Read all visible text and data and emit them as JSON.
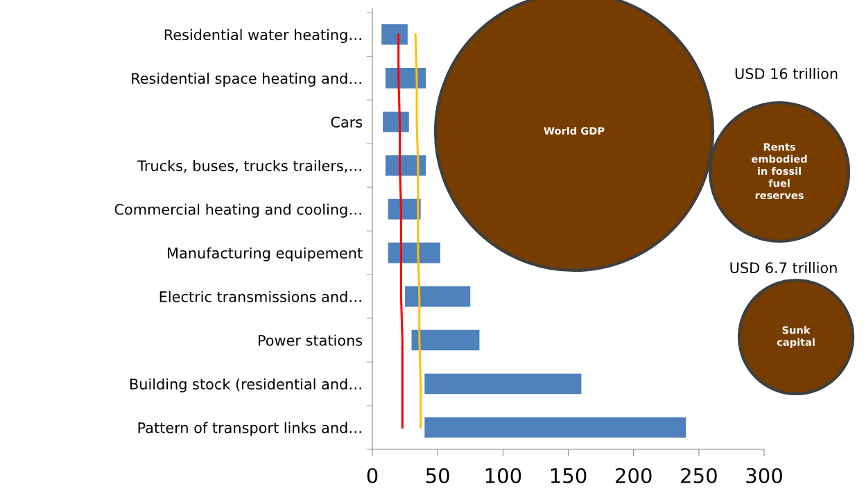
{
  "chart_data": {
    "type": "bar",
    "orientation": "horizontal",
    "categories": [
      "Residential water heating…",
      "Residential space heating and…",
      "Cars",
      "Trucks, buses, trucks trailers,…",
      "Commercial heating and cooling…",
      "Manufacturing equipement",
      "Electric transmissions and…",
      "Power stations",
      "Building stock (residential and…",
      "Pattern of transport links and…"
    ],
    "series": [
      {
        "color": "#4f81bd",
        "base": [
          7,
          10,
          8,
          10,
          12,
          12,
          25,
          30,
          40,
          40
        ],
        "values": [
          20,
          31,
          20,
          31,
          25,
          40,
          50,
          52,
          120,
          200
        ]
      },
      {
        "type": "line",
        "color": "#ff0000",
        "values": [
          20,
          20,
          21,
          21,
          22,
          22,
          22,
          23,
          23,
          23
        ]
      },
      {
        "type": "line",
        "color": "#ffc000",
        "values": [
          33,
          34,
          34,
          35,
          35,
          35,
          36,
          36,
          37,
          37
        ]
      }
    ],
    "xlim": [
      0,
      300
    ],
    "xticks": [
      0,
      50,
      100,
      150,
      200,
      250,
      300
    ],
    "grid": false,
    "annotations": [
      "World GDP",
      "USD 16 trillion",
      "Rents embodied in fossil fuel reserves",
      "USD 6.7 trillion",
      "Sunk capital"
    ]
  }
}
